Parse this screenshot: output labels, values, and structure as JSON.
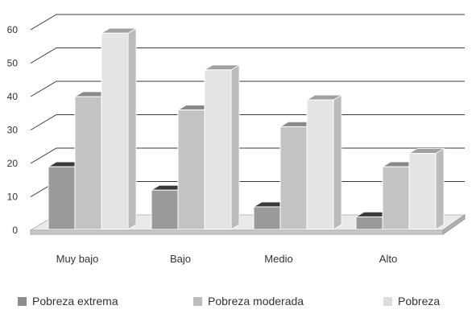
{
  "chart_data": {
    "type": "bar",
    "categories": [
      "Muy bajo",
      "Bajo",
      "Medio",
      "Alto"
    ],
    "series": [
      {
        "name": "Pobreza extrema",
        "values": [
          19,
          12,
          7,
          4
        ],
        "color": "#9b9a98"
      },
      {
        "name": "Pobreza moderada",
        "values": [
          40,
          36,
          31,
          19
        ],
        "color": "#c4c3c1"
      },
      {
        "name": "Pobreza",
        "values": [
          59,
          48,
          39,
          23
        ],
        "color": "#e4e4e3"
      }
    ],
    "yticks": [
      0,
      10,
      20,
      30,
      40,
      50,
      60
    ],
    "ylim": [
      0,
      60
    ],
    "grid": true,
    "legend_position": "bottom",
    "style": "3d-bar"
  }
}
